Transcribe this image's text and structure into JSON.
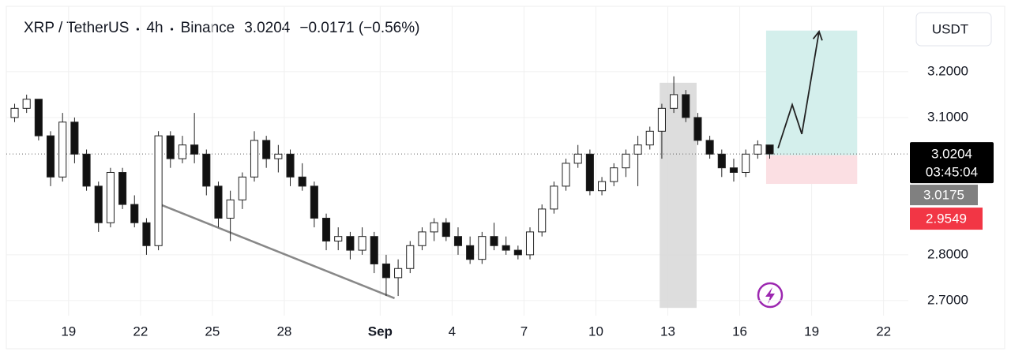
{
  "chart_data": {
    "type": "candlestick",
    "symbol": "XRP / TetherUS",
    "interval": "4h",
    "exchange": "Binance",
    "last": 3.0204,
    "change": "−0.0171 (−0.56%)",
    "currency": "USDT",
    "countdown": "03:45:04",
    "up_color": "#ffffff",
    "down_color": "#111111",
    "xlim": [
      16.7,
      54
    ],
    "ylim": [
      2.667,
      3.343
    ],
    "xticks": [
      19,
      22,
      25,
      28,
      {
        "value": 32,
        "label": "Sep"
      },
      {
        "value": 35,
        "label": "4"
      },
      {
        "value": 38,
        "label": "7"
      },
      {
        "value": 41,
        "label": "10"
      },
      {
        "value": 44,
        "label": "13"
      },
      {
        "value": 47,
        "label": "16"
      },
      {
        "value": 50,
        "label": "19"
      },
      {
        "value": 53,
        "label": "22"
      }
    ],
    "yticks": [
      {
        "value": 2.7,
        "label": "2.7000"
      },
      {
        "value": 2.8,
        "label": "2.8000"
      },
      {
        "value": 3.1,
        "label": "3.1000"
      },
      {
        "value": 3.2,
        "label": "3.2000"
      }
    ],
    "grid": true,
    "x": [
      16.75,
      17.25,
      17.75,
      18.25,
      18.75,
      19.25,
      19.75,
      20.25,
      20.75,
      21.25,
      21.75,
      22.25,
      22.75,
      23.25,
      23.75,
      24.25,
      24.75,
      25.25,
      25.75,
      26.25,
      26.75,
      27.25,
      27.75,
      28.25,
      28.75,
      29.25,
      29.75,
      30.25,
      30.75,
      31.25,
      31.75,
      32.25,
      32.75,
      33.25,
      33.75,
      34.25,
      34.75,
      35.25,
      35.75,
      36.25,
      36.75,
      37.25,
      37.75,
      38.25,
      38.75,
      39.25,
      39.75,
      40.25,
      40.75,
      41.25,
      41.75,
      42.25,
      42.75,
      43.25,
      43.75,
      44.25,
      44.75,
      45.25,
      45.75,
      46.25,
      46.75,
      47.25,
      47.75,
      48.25
    ],
    "candles": [
      [
        3.1,
        3.13,
        3.09,
        3.12
      ],
      [
        3.12,
        3.15,
        3.11,
        3.14
      ],
      [
        3.14,
        3.14,
        3.05,
        3.06
      ],
      [
        3.06,
        3.07,
        2.95,
        2.97
      ],
      [
        2.97,
        3.11,
        2.96,
        3.09
      ],
      [
        3.09,
        3.1,
        3.0,
        3.02
      ],
      [
        3.02,
        3.03,
        2.94,
        2.95
      ],
      [
        2.95,
        2.96,
        2.85,
        2.87
      ],
      [
        2.87,
        2.99,
        2.86,
        2.98
      ],
      [
        2.98,
        2.99,
        2.9,
        2.91
      ],
      [
        2.91,
        2.93,
        2.86,
        2.87
      ],
      [
        2.87,
        2.88,
        2.8,
        2.82
      ],
      [
        2.82,
        3.07,
        2.81,
        3.06
      ],
      [
        3.06,
        3.07,
        2.99,
        3.01
      ],
      [
        3.01,
        3.06,
        3.0,
        3.04
      ],
      [
        3.04,
        3.11,
        3.0,
        3.02
      ],
      [
        3.02,
        3.03,
        2.93,
        2.95
      ],
      [
        2.95,
        2.96,
        2.86,
        2.88
      ],
      [
        2.88,
        2.94,
        2.83,
        2.92
      ],
      [
        2.92,
        2.98,
        2.9,
        2.97
      ],
      [
        2.97,
        3.07,
        2.96,
        3.05
      ],
      [
        3.05,
        3.06,
        2.99,
        3.01
      ],
      [
        3.01,
        3.04,
        2.98,
        3.02
      ],
      [
        3.02,
        3.03,
        2.95,
        2.97
      ],
      [
        2.97,
        3.0,
        2.94,
        2.95
      ],
      [
        2.95,
        2.96,
        2.86,
        2.88
      ],
      [
        2.88,
        2.89,
        2.81,
        2.83
      ],
      [
        2.83,
        2.86,
        2.81,
        2.84
      ],
      [
        2.84,
        2.85,
        2.79,
        2.81
      ],
      [
        2.81,
        2.86,
        2.8,
        2.84
      ],
      [
        2.84,
        2.85,
        2.76,
        2.78
      ],
      [
        2.78,
        2.8,
        2.71,
        2.75
      ],
      [
        2.75,
        2.79,
        2.71,
        2.77
      ],
      [
        2.77,
        2.83,
        2.76,
        2.82
      ],
      [
        2.82,
        2.86,
        2.81,
        2.85
      ],
      [
        2.85,
        2.88,
        2.83,
        2.87
      ],
      [
        2.87,
        2.88,
        2.83,
        2.84
      ],
      [
        2.84,
        2.86,
        2.8,
        2.82
      ],
      [
        2.82,
        2.84,
        2.78,
        2.79
      ],
      [
        2.79,
        2.85,
        2.78,
        2.84
      ],
      [
        2.84,
        2.87,
        2.81,
        2.82
      ],
      [
        2.82,
        2.84,
        2.8,
        2.81
      ],
      [
        2.81,
        2.82,
        2.79,
        2.8
      ],
      [
        2.8,
        2.86,
        2.79,
        2.85
      ],
      [
        2.85,
        2.91,
        2.84,
        2.9
      ],
      [
        2.9,
        2.96,
        2.89,
        2.95
      ],
      [
        2.95,
        3.01,
        2.94,
        3.0
      ],
      [
        3.0,
        3.04,
        2.99,
        3.02
      ],
      [
        3.02,
        3.03,
        2.93,
        2.94
      ],
      [
        2.94,
        2.97,
        2.93,
        2.96
      ],
      [
        2.96,
        3.0,
        2.95,
        2.99
      ],
      [
        2.99,
        3.03,
        2.97,
        3.02
      ],
      [
        3.02,
        3.06,
        2.95,
        3.04
      ],
      [
        3.04,
        3.08,
        3.03,
        3.07
      ],
      [
        3.07,
        3.13,
        3.01,
        3.12
      ],
      [
        3.12,
        3.19,
        3.11,
        3.15
      ],
      [
        3.15,
        3.16,
        3.09,
        3.1
      ],
      [
        3.1,
        3.11,
        3.04,
        3.05
      ],
      [
        3.05,
        3.06,
        3.01,
        3.02
      ],
      [
        3.02,
        3.03,
        2.97,
        2.99
      ],
      [
        2.99,
        3.01,
        2.96,
        2.98
      ],
      [
        2.98,
        3.03,
        2.97,
        3.02
      ],
      [
        3.02,
        3.05,
        3.01,
        3.04
      ],
      [
        3.04,
        3.04,
        3.01,
        3.0204
      ]
    ],
    "highlight": {
      "x": [
        43.66,
        45.2
      ],
      "y": [
        2.684,
        3.176
      ]
    },
    "trendline": {
      "x": [
        22.82,
        32.6
      ],
      "y": [
        2.91,
        2.705
      ]
    },
    "arrow": {
      "x": [
        48.6,
        49.19,
        49.59,
        50.31
      ],
      "y": [
        3.033,
        3.128,
        3.064,
        3.288
      ]
    },
    "position": {
      "x": [
        48.1,
        51.9
      ],
      "entry": 3.0175,
      "target": 3.29,
      "stop": 2.9549
    }
  }
}
